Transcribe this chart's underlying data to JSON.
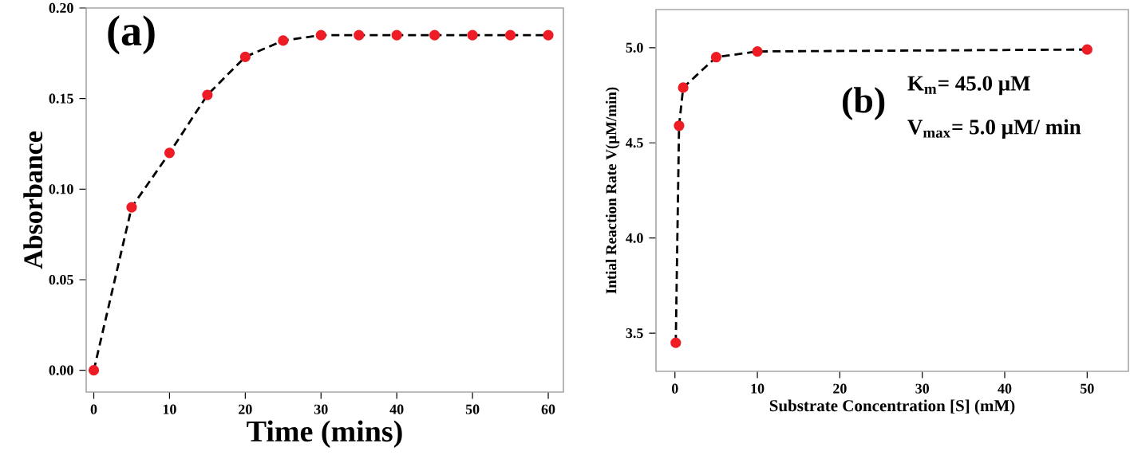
{
  "chart_data": [
    {
      "type": "line",
      "xlabel": "Time (mins)",
      "ylabel": "Absorbance",
      "annotations": [
        "(a)"
      ],
      "x": [
        0,
        5,
        10,
        15,
        20,
        25,
        30,
        35,
        40,
        45,
        50,
        55,
        60
      ],
      "series": [
        {
          "color": "#ee1c25",
          "values": [
            0,
            0.09,
            0.12,
            0.152,
            0.173,
            0.182,
            0.185,
            0.185,
            0.185,
            0.185,
            0.185,
            0.185,
            0.185
          ]
        }
      ],
      "xlim": [
        -1,
        62
      ],
      "ylim": [
        -0.012,
        0.2
      ],
      "xticks": [
        0,
        10,
        20,
        30,
        40,
        50,
        60
      ],
      "yticks": [
        {
          "value": 0,
          "label": "0.00"
        },
        {
          "value": 0.05,
          "label": "0.05"
        },
        {
          "value": 0.1,
          "label": "0.10"
        },
        {
          "value": 0.15,
          "label": "0.15"
        },
        {
          "value": 0.2,
          "label": "0.20"
        }
      ],
      "marker": "circle",
      "line_style": "dashed"
    },
    {
      "type": "line",
      "xlabel": "Substrate Concentration [S] (mM)",
      "ylabel": "Intial Reaction Rate V(μM/min)",
      "annotations": [
        "(b)",
        "K$_{m}$= 45.0 μM",
        "V$_{max}$= 5.0 μM/ min"
      ],
      "x": [
        0.1,
        0.5,
        1,
        5,
        10,
        50
      ],
      "series": [
        {
          "color": "#ee1c25",
          "values": [
            3.45,
            4.59,
            4.79,
            4.95,
            4.98,
            4.99
          ]
        }
      ],
      "xlim": [
        -2.3,
        55
      ],
      "ylim": [
        3.3,
        5.2
      ],
      "xticks": [
        0,
        10,
        20,
        30,
        40,
        50
      ],
      "yticks": [
        {
          "value": 3.5,
          "label": "3.5"
        },
        {
          "value": 4,
          "label": "4.0"
        },
        {
          "value": 4.5,
          "label": "4.5"
        },
        {
          "value": 5,
          "label": "5.0"
        }
      ],
      "marker": "circle",
      "line_style": "dashed"
    }
  ]
}
